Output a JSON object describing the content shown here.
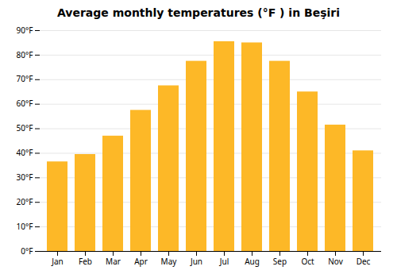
{
  "chart_data": {
    "type": "bar",
    "title": "Average monthly temperatures (°F ) in Beşiri",
    "categories": [
      "Jan",
      "Feb",
      "Mar",
      "Apr",
      "May",
      "Jun",
      "Jul",
      "Aug",
      "Sep",
      "Oct",
      "Nov",
      "Dec"
    ],
    "values": [
      36.5,
      39.5,
      47.0,
      57.5,
      67.5,
      77.5,
      85.5,
      85.0,
      77.5,
      65.0,
      51.5,
      41.0
    ],
    "color": "#FDB827",
    "ylim": [
      0,
      90
    ],
    "yticks": [
      {
        "value": 0,
        "label": "0°F"
      },
      {
        "value": 10,
        "label": "10°F"
      },
      {
        "value": 20,
        "label": "20°F"
      },
      {
        "value": 30,
        "label": "30°F"
      },
      {
        "value": 40,
        "label": "40°F"
      },
      {
        "value": 50,
        "label": "50°F"
      },
      {
        "value": 60,
        "label": "60°F"
      },
      {
        "value": 70,
        "label": "70°F"
      },
      {
        "value": 80,
        "label": "80°F"
      },
      {
        "value": 90,
        "label": "90°F"
      }
    ],
    "grid": true
  }
}
